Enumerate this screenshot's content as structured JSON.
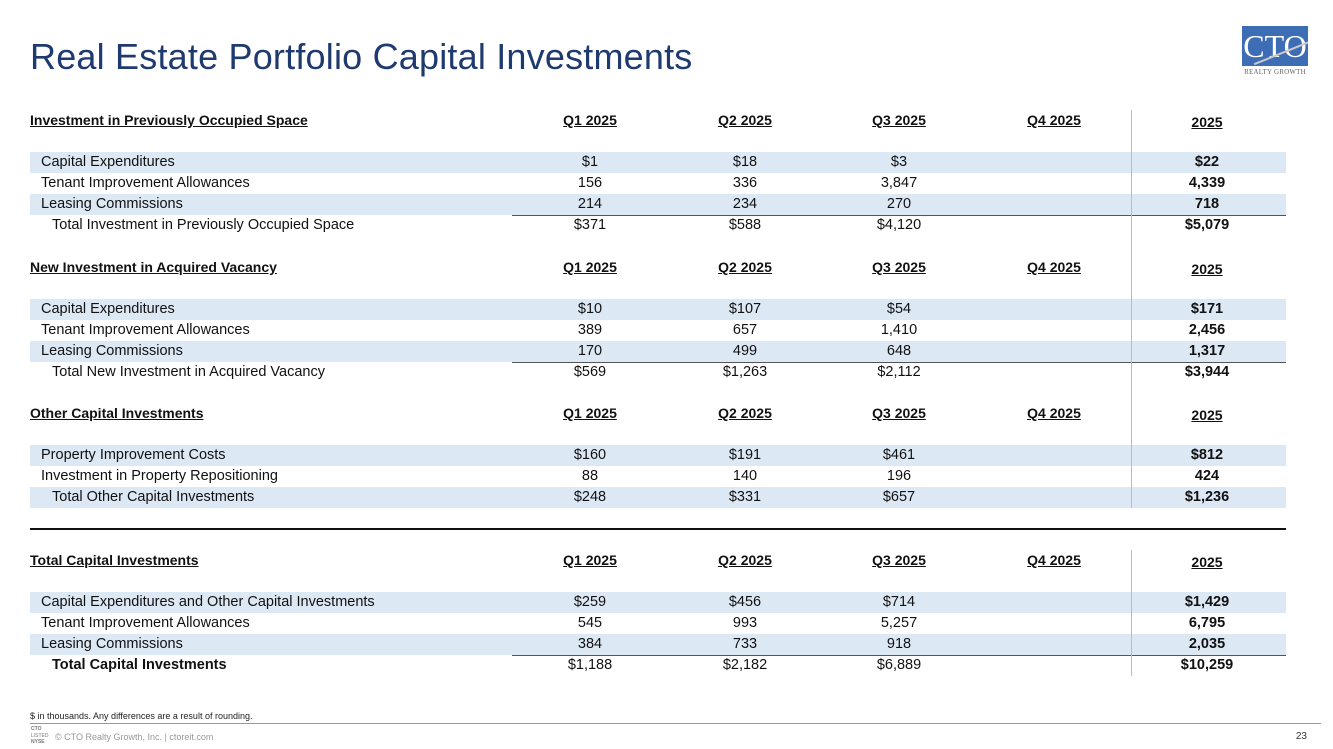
{
  "title": "Real Estate Portfolio Capital Investments",
  "logo": {
    "text": "CTO",
    "subtext": "REALTY GROWTH"
  },
  "columns": [
    "Q1 2025",
    "Q2 2025",
    "Q3 2025",
    "Q4 2025",
    "2025"
  ],
  "sections": [
    {
      "heading": "Investment in Previously Occupied Space",
      "rows": [
        {
          "label": "Capital Expenditures",
          "values": [
            "$1",
            "$18",
            "$3",
            "",
            "$22"
          ]
        },
        {
          "label": "Tenant Improvement Allowances",
          "values": [
            "156",
            "336",
            "3,847",
            "",
            "4,339"
          ]
        },
        {
          "label": "Leasing Commissions",
          "values": [
            "214",
            "234",
            "270",
            "",
            "718"
          ]
        },
        {
          "label": "Total Investment in Previously Occupied Space",
          "values": [
            "$371",
            "$588",
            "$4,120",
            "",
            "$5,079"
          ]
        }
      ]
    },
    {
      "heading": "New Investment in Acquired Vacancy",
      "rows": [
        {
          "label": "Capital Expenditures",
          "values": [
            "$10",
            "$107",
            "$54",
            "",
            "$171"
          ]
        },
        {
          "label": "Tenant Improvement Allowances",
          "values": [
            "389",
            "657",
            "1,410",
            "",
            "2,456"
          ]
        },
        {
          "label": "Leasing Commissions",
          "values": [
            "170",
            "499",
            "648",
            "",
            "1,317"
          ]
        },
        {
          "label": "Total New Investment in Acquired Vacancy",
          "values": [
            "$569",
            "$1,263",
            "$2,112",
            "",
            "$3,944"
          ]
        }
      ]
    },
    {
      "heading": "Other Capital Investments",
      "rows": [
        {
          "label": "Property Improvement Costs",
          "values": [
            "$160",
            "$191",
            "$461",
            "",
            "$812"
          ]
        },
        {
          "label": "Investment in Property Repositioning",
          "values": [
            "88",
            "140",
            "196",
            "",
            "424"
          ]
        },
        {
          "label": "Total Other Capital Investments",
          "values": [
            "$248",
            "$331",
            "$657",
            "",
            "$1,236"
          ]
        }
      ]
    },
    {
      "heading": "Total Capital Investments",
      "rows": [
        {
          "label": "Capital Expenditures and Other Capital Investments",
          "values": [
            "$259",
            "$456",
            "$714",
            "",
            "$1,429"
          ]
        },
        {
          "label": "Tenant Improvement Allowances",
          "values": [
            "545",
            "993",
            "5,257",
            "",
            "6,795"
          ]
        },
        {
          "label": "Leasing Commissions",
          "values": [
            "384",
            "733",
            "918",
            "",
            "2,035"
          ]
        },
        {
          "label": "Total Capital Investments",
          "values": [
            "$1,188",
            "$2,182",
            "$6,889",
            "",
            "$10,259"
          ]
        }
      ]
    }
  ],
  "footnote": "$ in thousands. Any differences are a result of rounding.",
  "footer": {
    "nyse_badge": "CTO LISTED NYSE",
    "copyright": "© CTO Realty Growth, Inc. | ctoreit.com",
    "page_number": "23"
  },
  "colors": {
    "title": "#1f3a6e",
    "row_highlight": "#dde8f5",
    "logo": "#3d6db5"
  }
}
